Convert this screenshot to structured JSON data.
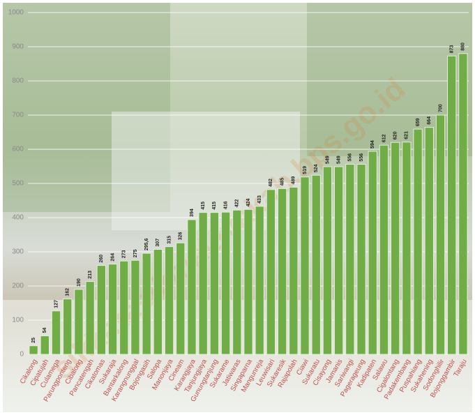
{
  "chart_data": {
    "type": "bar",
    "categories": [
      "Cikalong",
      "Cipatujah",
      "Culamega",
      "Parungponteng",
      "Cibalong",
      "Pancatengah",
      "Cikatomas",
      "Sukaraja",
      "Bantarkalong",
      "Karangnunggal",
      "Bojongasih",
      "Salopa",
      "Manonjaya",
      "Cineam",
      "Karangjaya",
      "Tanjungjaya",
      "Gunungtanjung",
      "Sukarame",
      "Jatiwaras",
      "Singaparna",
      "Mangunreja",
      "Leuwisari",
      "Sukaresik",
      "Rajapolah",
      "Ciawi",
      "Sukaratu",
      "Cisayong",
      "Jamanis",
      "Sariwangi",
      "Pagerageung",
      "Kadipaten",
      "Salawu",
      "Cigalontang",
      "Padakembang",
      "Puspahiang",
      "Sukahening",
      "Sodonghilir",
      "Bojonggambir",
      "Taraju"
    ],
    "values": [
      25,
      54,
      127,
      162,
      190,
      213,
      260,
      264,
      273,
      275,
      295.6,
      307,
      315,
      326,
      394,
      415,
      415,
      416,
      422,
      424,
      433,
      482,
      485,
      489,
      519,
      524,
      549,
      549,
      556,
      556,
      594,
      612,
      620,
      621,
      659,
      664,
      700,
      873,
      880
    ],
    "value_labels": [
      "25",
      "54",
      "127",
      "162",
      "190",
      "213",
      "260",
      "264",
      "273",
      "275",
      "295,6",
      "307",
      "315",
      "326",
      "394",
      "415",
      "415",
      "416",
      "422",
      "424",
      "433",
      "482",
      "485",
      "489",
      "519",
      "524",
      "549",
      "549",
      "556",
      "556",
      "594",
      "612",
      "620",
      "621",
      "659",
      "664",
      "700",
      "873",
      "880"
    ],
    "color": "#70ad47",
    "ylim": [
      0,
      1000
    ],
    "yticks": [
      0,
      100,
      200,
      300,
      400,
      500,
      600,
      700,
      800,
      900,
      1000
    ],
    "grid": true,
    "watermark": "sikkatasikmalayakab.bps.go.id"
  }
}
